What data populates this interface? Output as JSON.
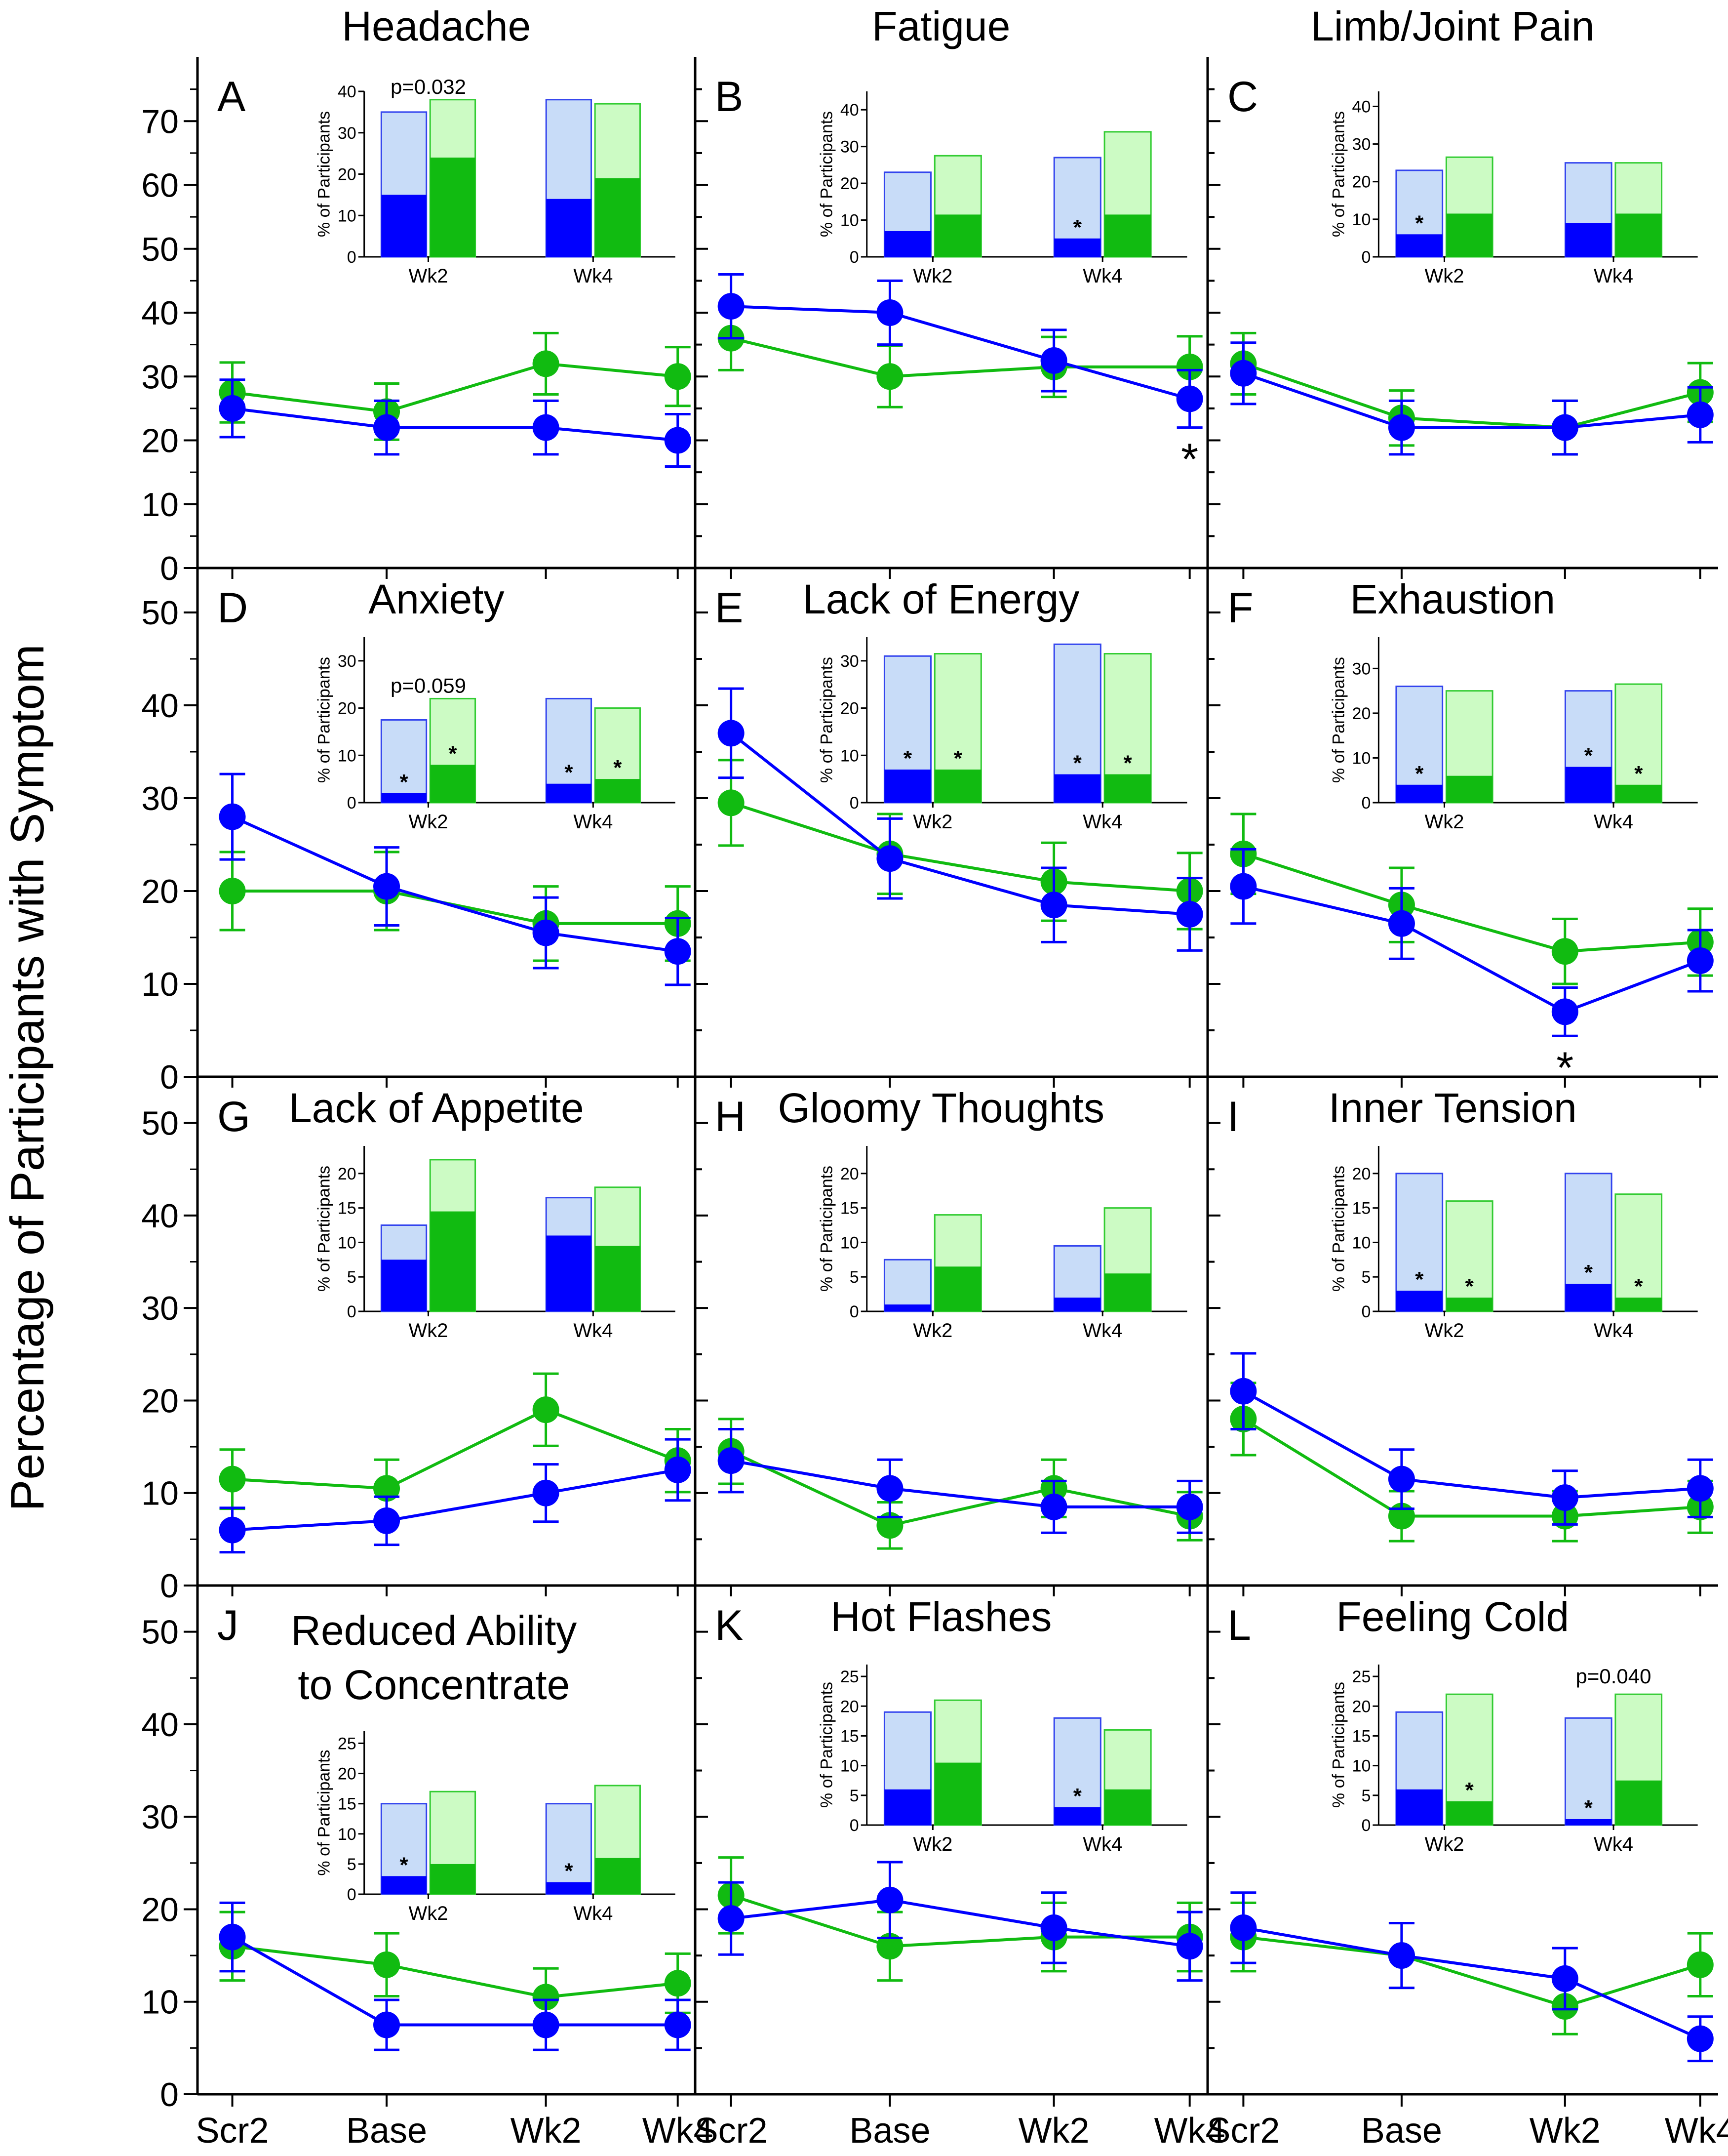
{
  "figure": {
    "ylabel": "Percentage of Participants with Symptom",
    "x_categories": [
      "Scr2",
      "Base",
      "Wk2",
      "Wk4"
    ],
    "colors": {
      "blue": "#0000ff",
      "green": "#11bb11",
      "light_blue": "#c8dcf8",
      "light_green": "#ccfbc4",
      "inset_blue_edge": "#3344ee",
      "inset_green_edge": "#33cc33"
    }
  },
  "chart_data": [
    {
      "id": "A",
      "title": "Headache",
      "type": "line",
      "ylim": [
        0,
        80
      ],
      "yticks": [
        0,
        10,
        20,
        30,
        40,
        50,
        60,
        70
      ],
      "series": [
        {
          "name": "blue",
          "values": [
            25,
            22,
            22,
            20
          ],
          "err": [
            4.5,
            4.2,
            4.2,
            4.1
          ]
        },
        {
          "name": "green",
          "values": [
            27.5,
            24.5,
            32,
            30
          ],
          "err": [
            4.7,
            4.4,
            4.8,
            4.6
          ]
        }
      ],
      "stars": [],
      "inset": {
        "ylabel": "% of Participants",
        "ymax": 40,
        "yticks": [
          0,
          10,
          20,
          30,
          40
        ],
        "categories": [
          "Wk2",
          "Wk4"
        ],
        "blue_total": [
          35,
          38
        ],
        "blue_part": [
          15,
          14
        ],
        "green_total": [
          38,
          37
        ],
        "green_part": [
          24,
          19
        ],
        "stars": [],
        "pvalue": {
          "text": "p=0.032",
          "position": "over-wk2"
        }
      }
    },
    {
      "id": "B",
      "title": "Fatigue",
      "type": "line",
      "ylim": [
        0,
        80
      ],
      "yticks": [],
      "series": [
        {
          "name": "blue",
          "values": [
            41,
            40,
            32.5,
            26.5
          ],
          "err": [
            5,
            5,
            4.8,
            4.5
          ]
        },
        {
          "name": "green",
          "values": [
            36,
            30,
            31.5,
            31.5
          ],
          "err": [
            5,
            4.8,
            4.7,
            4.8
          ]
        }
      ],
      "stars": [
        {
          "point": 3,
          "below": true
        }
      ],
      "inset": {
        "ylabel": "% of Participants",
        "ymax": 45,
        "yticks": [
          0,
          10,
          20,
          30,
          40
        ],
        "categories": [
          "Wk2",
          "Wk4"
        ],
        "blue_total": [
          23,
          27
        ],
        "blue_part": [
          7,
          5
        ],
        "green_total": [
          27.5,
          34
        ],
        "green_part": [
          11.5,
          11.5
        ],
        "stars": [
          {
            "cat": 1,
            "color": "blue"
          }
        ],
        "pvalue": null
      }
    },
    {
      "id": "C",
      "title": "Limb/Joint Pain",
      "type": "line",
      "ylim": [
        0,
        80
      ],
      "yticks": [],
      "series": [
        {
          "name": "blue",
          "values": [
            30.5,
            22,
            22,
            24
          ],
          "err": [
            4.8,
            4.2,
            4.2,
            4.3
          ]
        },
        {
          "name": "green",
          "values": [
            32,
            23.5,
            22,
            27.5
          ],
          "err": [
            4.8,
            4.3,
            4.2,
            4.6
          ]
        }
      ],
      "stars": [],
      "inset": {
        "ylabel": "% of Participants",
        "ymax": 44,
        "yticks": [
          0,
          10,
          20,
          30,
          40
        ],
        "categories": [
          "Wk2",
          "Wk4"
        ],
        "blue_total": [
          23,
          25
        ],
        "blue_part": [
          6,
          9
        ],
        "green_total": [
          26.5,
          25
        ],
        "green_part": [
          11.5,
          11.5
        ],
        "stars": [
          {
            "cat": 0,
            "color": "blue"
          }
        ],
        "pvalue": null
      }
    },
    {
      "id": "D",
      "title": "Anxiety",
      "type": "line",
      "ylim": [
        0,
        55
      ],
      "yticks": [
        0,
        10,
        20,
        30,
        40,
        50
      ],
      "series": [
        {
          "name": "blue",
          "values": [
            28,
            20.5,
            15.5,
            13.5
          ],
          "err": [
            4.6,
            4.2,
            3.8,
            3.6
          ]
        },
        {
          "name": "green",
          "values": [
            20,
            20,
            16.5,
            16.5
          ],
          "err": [
            4.2,
            4.2,
            4,
            4
          ]
        }
      ],
      "stars": [],
      "inset": {
        "ylabel": "% of Participants",
        "ymax": 35,
        "yticks": [
          0,
          10,
          20,
          30
        ],
        "categories": [
          "Wk2",
          "Wk4"
        ],
        "blue_total": [
          17.5,
          22
        ],
        "blue_part": [
          2,
          4
        ],
        "green_total": [
          22,
          20
        ],
        "green_part": [
          8,
          5
        ],
        "stars": [
          {
            "cat": 0,
            "color": "blue"
          },
          {
            "cat": 0,
            "color": "green"
          },
          {
            "cat": 1,
            "color": "blue"
          },
          {
            "cat": 1,
            "color": "green"
          }
        ],
        "pvalue": {
          "text": "p=0.059",
          "position": "over-wk2"
        }
      }
    },
    {
      "id": "E",
      "title": "Lack of Energy",
      "type": "line",
      "ylim": [
        0,
        55
      ],
      "yticks": [],
      "series": [
        {
          "name": "blue",
          "values": [
            37,
            23.5,
            18.5,
            17.5
          ],
          "err": [
            4.8,
            4.3,
            4,
            3.9
          ]
        },
        {
          "name": "green",
          "values": [
            29.5,
            24,
            21,
            20
          ],
          "err": [
            4.6,
            4.3,
            4.2,
            4.1
          ]
        }
      ],
      "stars": [],
      "inset": {
        "ylabel": "% of Participants",
        "ymax": 35,
        "yticks": [
          0,
          10,
          20,
          30
        ],
        "categories": [
          "Wk2",
          "Wk4"
        ],
        "blue_total": [
          31,
          33.5
        ],
        "blue_part": [
          7,
          6
        ],
        "green_total": [
          31.5,
          31.5
        ],
        "green_part": [
          7,
          6
        ],
        "stars": [
          {
            "cat": 0,
            "color": "blue"
          },
          {
            "cat": 0,
            "color": "green"
          },
          {
            "cat": 1,
            "color": "blue"
          },
          {
            "cat": 1,
            "color": "green"
          }
        ],
        "pvalue": null
      }
    },
    {
      "id": "F",
      "title": "Exhaustion",
      "type": "line",
      "ylim": [
        0,
        55
      ],
      "yticks": [],
      "series": [
        {
          "name": "blue",
          "values": [
            20.5,
            16.5,
            7,
            12.5
          ],
          "err": [
            4,
            3.8,
            2.6,
            3.3
          ]
        },
        {
          "name": "green",
          "values": [
            24,
            18.5,
            13.5,
            14.5
          ],
          "err": [
            4.3,
            4,
            3.5,
            3.6
          ]
        }
      ],
      "stars": [
        {
          "point": 2,
          "below": true
        }
      ],
      "inset": {
        "ylabel": "% of Participants",
        "ymax": 37,
        "yticks": [
          0,
          10,
          20,
          30
        ],
        "categories": [
          "Wk2",
          "Wk4"
        ],
        "blue_total": [
          26,
          25
        ],
        "blue_part": [
          4,
          8
        ],
        "green_total": [
          25,
          26.5
        ],
        "green_part": [
          6,
          4
        ],
        "stars": [
          {
            "cat": 0,
            "color": "blue"
          },
          {
            "cat": 1,
            "color": "blue"
          },
          {
            "cat": 1,
            "color": "green"
          }
        ],
        "pvalue": null
      }
    },
    {
      "id": "G",
      "title": "Lack of Appetite",
      "type": "line",
      "ylim": [
        0,
        55
      ],
      "yticks": [
        0,
        10,
        20,
        30,
        40,
        50
      ],
      "series": [
        {
          "name": "blue",
          "values": [
            6,
            7,
            10,
            12.5
          ],
          "err": [
            2.4,
            2.6,
            3.1,
            3.3
          ]
        },
        {
          "name": "green",
          "values": [
            11.5,
            10.5,
            19,
            13.5
          ],
          "err": [
            3.2,
            3.1,
            3.9,
            3.4
          ]
        }
      ],
      "stars": [],
      "inset": {
        "ylabel": "% of Participants",
        "ymax": 24,
        "yticks": [
          0,
          5,
          10,
          15,
          20
        ],
        "categories": [
          "Wk2",
          "Wk4"
        ],
        "blue_total": [
          12.5,
          16.5
        ],
        "blue_part": [
          7.5,
          11
        ],
        "green_total": [
          22,
          18
        ],
        "green_part": [
          14.5,
          9.5
        ],
        "stars": [],
        "pvalue": null
      }
    },
    {
      "id": "H",
      "title": "Gloomy Thoughts",
      "type": "line",
      "ylim": [
        0,
        55
      ],
      "yticks": [],
      "series": [
        {
          "name": "blue",
          "values": [
            13.5,
            10.5,
            8.5,
            8.5
          ],
          "err": [
            3.4,
            3.1,
            2.8,
            2.8
          ]
        },
        {
          "name": "green",
          "values": [
            14.5,
            6.5,
            10.5,
            7.5
          ],
          "err": [
            3.5,
            2.5,
            3.1,
            2.6
          ]
        }
      ],
      "stars": [],
      "inset": {
        "ylabel": "% of Participants",
        "ymax": 24,
        "yticks": [
          0,
          5,
          10,
          15,
          20
        ],
        "categories": [
          "Wk2",
          "Wk4"
        ],
        "blue_total": [
          7.5,
          9.5
        ],
        "blue_part": [
          1,
          2
        ],
        "green_total": [
          14,
          15
        ],
        "green_part": [
          6.5,
          5.5
        ],
        "stars": [],
        "pvalue": null
      }
    },
    {
      "id": "I",
      "title": "Inner Tension",
      "type": "line",
      "ylim": [
        0,
        55
      ],
      "yticks": [],
      "series": [
        {
          "name": "blue",
          "values": [
            21,
            11.5,
            9.5,
            10.5
          ],
          "err": [
            4.1,
            3.2,
            2.9,
            3.1
          ]
        },
        {
          "name": "green",
          "values": [
            18,
            7.5,
            7.5,
            8.5
          ],
          "err": [
            3.9,
            2.7,
            2.7,
            2.8
          ]
        }
      ],
      "stars": [],
      "inset": {
        "ylabel": "% of Participants",
        "ymax": 24,
        "yticks": [
          0,
          5,
          10,
          15,
          20
        ],
        "categories": [
          "Wk2",
          "Wk4"
        ],
        "blue_total": [
          20,
          20
        ],
        "blue_part": [
          3,
          4
        ],
        "green_total": [
          16,
          17
        ],
        "green_part": [
          2,
          2
        ],
        "stars": [
          {
            "cat": 0,
            "color": "blue"
          },
          {
            "cat": 0,
            "color": "green"
          },
          {
            "cat": 1,
            "color": "blue"
          },
          {
            "cat": 1,
            "color": "green"
          }
        ],
        "pvalue": null
      }
    },
    {
      "id": "J",
      "title": "Reduced Ability to Concentrate",
      "title_lines": [
        "Reduced Ability",
        "to Concentrate"
      ],
      "type": "line",
      "ylim": [
        0,
        55
      ],
      "yticks": [
        0,
        10,
        20,
        30,
        40,
        50
      ],
      "series": [
        {
          "name": "blue",
          "values": [
            17,
            7.5,
            7.5,
            7.5
          ],
          "err": [
            3.7,
            2.7,
            2.7,
            2.7
          ]
        },
        {
          "name": "green",
          "values": [
            16,
            14,
            10.5,
            12
          ],
          "err": [
            3.7,
            3.4,
            3.1,
            3.2
          ]
        }
      ],
      "stars": [],
      "inset": {
        "ylabel": "% of Participants",
        "ymax": 27,
        "yticks": [
          0,
          5,
          10,
          15,
          20,
          25
        ],
        "categories": [
          "Wk2",
          "Wk4"
        ],
        "blue_total": [
          15,
          15
        ],
        "blue_part": [
          3,
          2
        ],
        "green_total": [
          17,
          18
        ],
        "green_part": [
          5,
          6
        ],
        "stars": [
          {
            "cat": 0,
            "color": "blue"
          },
          {
            "cat": 1,
            "color": "blue"
          }
        ],
        "pvalue": null
      }
    },
    {
      "id": "K",
      "title": "Hot Flashes",
      "type": "line",
      "ylim": [
        0,
        55
      ],
      "yticks": [],
      "series": [
        {
          "name": "blue",
          "values": [
            19,
            21,
            18,
            16
          ],
          "err": [
            3.9,
            4.1,
            3.8,
            3.7
          ]
        },
        {
          "name": "green",
          "values": [
            21.5,
            16,
            17,
            17
          ],
          "err": [
            4.1,
            3.7,
            3.7,
            3.7
          ]
        }
      ],
      "stars": [],
      "inset": {
        "ylabel": "% of Participants",
        "ymax": 27,
        "yticks": [
          0,
          5,
          10,
          15,
          20,
          25
        ],
        "categories": [
          "Wk2",
          "Wk4"
        ],
        "blue_total": [
          19,
          18
        ],
        "blue_part": [
          6,
          3
        ],
        "green_total": [
          21,
          16
        ],
        "green_part": [
          10.5,
          6
        ],
        "stars": [
          {
            "cat": 1,
            "color": "blue"
          }
        ],
        "pvalue": null
      }
    },
    {
      "id": "L",
      "title": "Feeling Cold",
      "type": "line",
      "ylim": [
        0,
        55
      ],
      "yticks": [],
      "series": [
        {
          "name": "blue",
          "values": [
            18,
            15,
            12.5,
            6
          ],
          "err": [
            3.8,
            3.5,
            3.3,
            2.4
          ]
        },
        {
          "name": "green",
          "values": [
            17,
            15,
            9.5,
            14
          ],
          "err": [
            3.7,
            3.5,
            3,
            3.4
          ]
        }
      ],
      "stars": [],
      "inset": {
        "ylabel": "% of Participants",
        "ymax": 27,
        "yticks": [
          0,
          5,
          10,
          15,
          20,
          25
        ],
        "categories": [
          "Wk2",
          "Wk4"
        ],
        "blue_total": [
          19,
          18
        ],
        "blue_part": [
          6,
          1
        ],
        "green_total": [
          22,
          22
        ],
        "green_part": [
          4,
          7.5
        ],
        "stars": [
          {
            "cat": 0,
            "color": "green"
          },
          {
            "cat": 1,
            "color": "blue"
          }
        ],
        "pvalue": {
          "text": "p=0.040",
          "position": "over-wk4"
        }
      }
    }
  ]
}
